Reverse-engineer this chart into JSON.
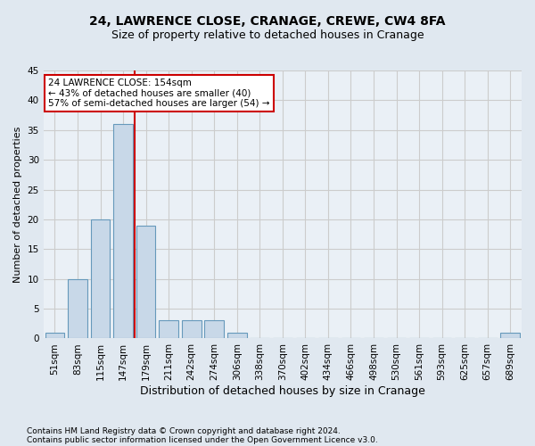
{
  "title1": "24, LAWRENCE CLOSE, CRANAGE, CREWE, CW4 8FA",
  "title2": "Size of property relative to detached houses in Cranage",
  "xlabel": "Distribution of detached houses by size in Cranage",
  "ylabel": "Number of detached properties",
  "footnote1": "Contains HM Land Registry data © Crown copyright and database right 2024.",
  "footnote2": "Contains public sector information licensed under the Open Government Licence v3.0.",
  "bins": [
    "51sqm",
    "83sqm",
    "115sqm",
    "147sqm",
    "179sqm",
    "211sqm",
    "242sqm",
    "274sqm",
    "306sqm",
    "338sqm",
    "370sqm",
    "402sqm",
    "434sqm",
    "466sqm",
    "498sqm",
    "530sqm",
    "561sqm",
    "593sqm",
    "625sqm",
    "657sqm",
    "689sqm"
  ],
  "values": [
    1,
    10,
    20,
    36,
    19,
    3,
    3,
    3,
    1,
    0,
    0,
    0,
    0,
    0,
    0,
    0,
    0,
    0,
    0,
    0,
    1
  ],
  "bar_color": "#c8d8e8",
  "bar_edge_color": "#6699bb",
  "vline_x": 3.5,
  "vline_color": "#cc0000",
  "annotation_line1": "24 LAWRENCE CLOSE: 154sqm",
  "annotation_line2": "← 43% of detached houses are smaller (40)",
  "annotation_line3": "57% of semi-detached houses are larger (54) →",
  "annotation_box_color": "#ffffff",
  "annotation_border_color": "#cc0000",
  "ylim": [
    0,
    45
  ],
  "yticks": [
    0,
    5,
    10,
    15,
    20,
    25,
    30,
    35,
    40,
    45
  ],
  "grid_color": "#cccccc",
  "bg_color": "#e0e8f0",
  "plot_bg_color": "#eaf0f6",
  "title1_fontsize": 10,
  "title2_fontsize": 9,
  "xlabel_fontsize": 9,
  "ylabel_fontsize": 8,
  "tick_fontsize": 7.5,
  "footnote_fontsize": 6.5,
  "annot_fontsize": 7.5
}
